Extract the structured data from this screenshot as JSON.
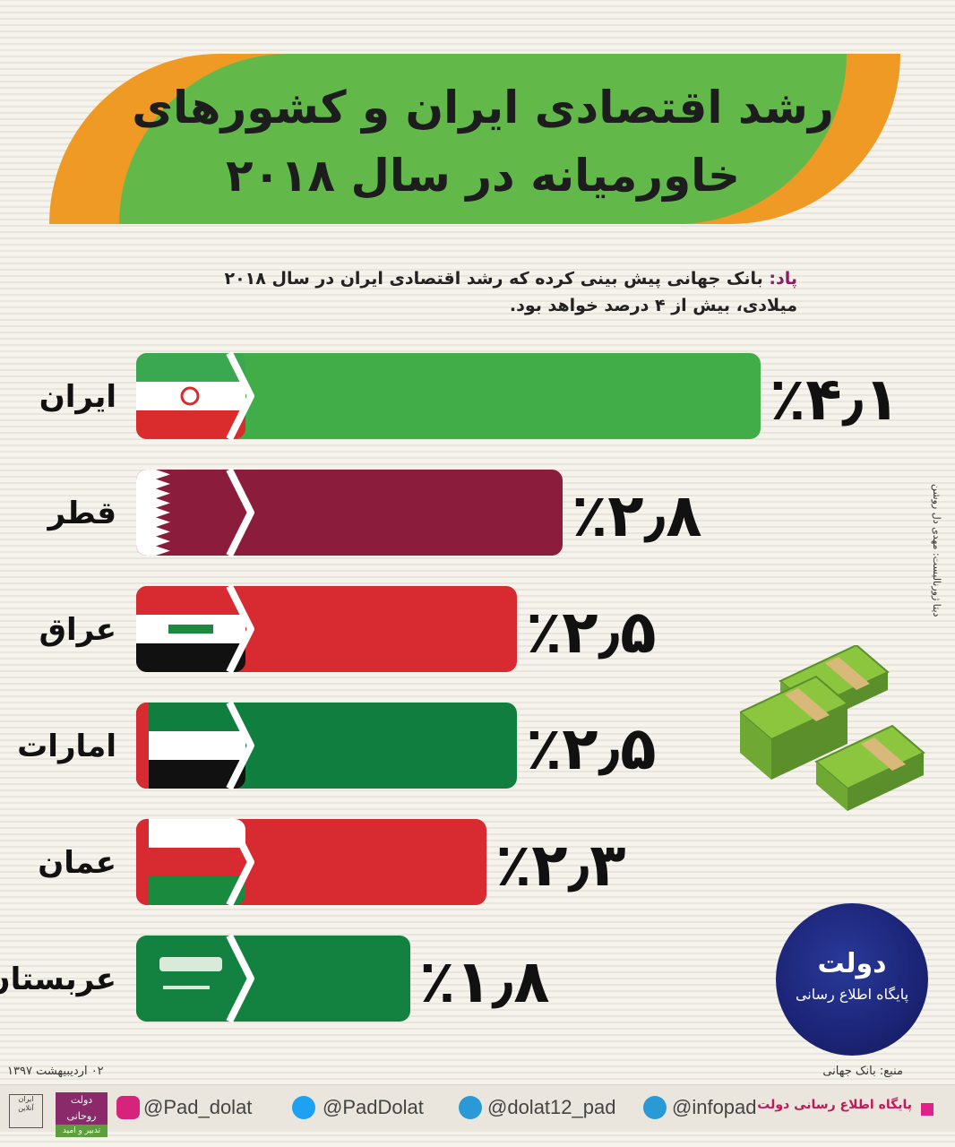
{
  "title": {
    "line1": "رشد اقتصادی ایران و کشورهای",
    "line2": "خاورمیانه در سال ۲۰۱۸"
  },
  "lead": {
    "label": "پاد:",
    "text": "بانک جهانی پیش بینی کرده که رشد اقتصادی ایران در سال ۲۰۱۸ میلادی، بیش از ۴ درصد خواهد بود."
  },
  "side_credit": "دیتا ژورنالیست: مهدی دل روشن",
  "chart_data": {
    "type": "bar",
    "orientation": "horizontal",
    "categories": [
      "ایران",
      "قطر",
      "عراق",
      "امارات",
      "عمان",
      "عربستان"
    ],
    "values": [
      4.1,
      2.8,
      2.5,
      2.5,
      2.3,
      1.8
    ],
    "value_labels": [
      "٪۴٫۱",
      "٪۲٫۸",
      "٪۲٫۵",
      "٪۲٫۵",
      "٪۲٫۳",
      "٪۱٫۸"
    ],
    "colors": [
      "#41ad49",
      "#8c1c3b",
      "#d72a31",
      "#0f7e3e",
      "#d72a31",
      "#13813f"
    ],
    "flags": [
      "iran-flag",
      "qatar-flag",
      "iraq-flag",
      "uae-flag",
      "oman-flag",
      "saudi-flag"
    ]
  },
  "logo": {
    "line1": "دولت",
    "line2": "پایگاه اطلاع رسانی"
  },
  "source": "منبع: بانک جهانی",
  "date": "۰۲ اردیبیهشت ۱۳۹۷",
  "footer": {
    "portal": "پایگاه اطلاع رسانی دولت",
    "handles": [
      "@infopad",
      "@dolat12_pad",
      "@PadDolat",
      "@Pad_dolat"
    ],
    "badge_top": "دولت روحانی",
    "badge_bottom": "تدبیر و امید",
    "signature": "ایران آنلاین"
  },
  "colors": {
    "title_green": "#62b94a",
    "title_orange": "#ef9a25",
    "lead_label": "#8b1d63"
  }
}
